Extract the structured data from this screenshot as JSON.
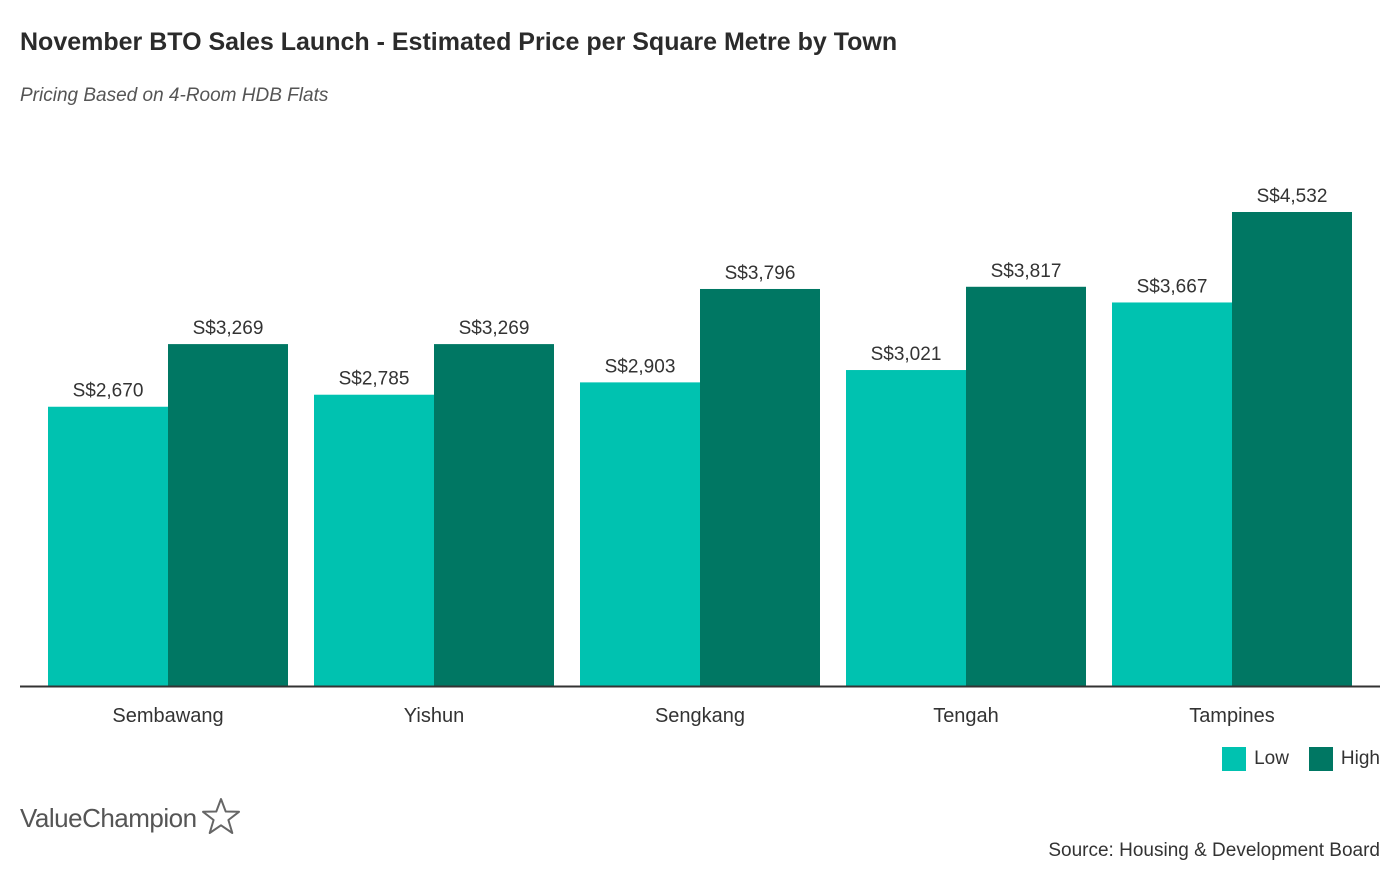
{
  "title": "November BTO Sales Launch - Estimated Price per Square Metre by Town",
  "subtitle": "Pricing Based on 4-Room HDB Flats",
  "colors": {
    "low": "#00c2b0",
    "high": "#007763",
    "axis": "#333333"
  },
  "chart_data": {
    "type": "bar",
    "categories": [
      "Sembawang",
      "Yishun",
      "Sengkang",
      "Tengah",
      "Tampines"
    ],
    "series": [
      {
        "name": "Low",
        "values": [
          2670,
          2785,
          2903,
          3021,
          3667
        ],
        "labels": [
          "S$2,670",
          "S$2,785",
          "S$2,903",
          "S$3,021",
          "S$3,667"
        ]
      },
      {
        "name": "High",
        "values": [
          3269,
          3269,
          3796,
          3817,
          4532
        ],
        "labels": [
          "S$3,269",
          "S$3,269",
          "S$3,796",
          "S$3,817",
          "S$4,532"
        ]
      }
    ],
    "ylim": [
      0,
      5000
    ],
    "grid": false,
    "legend_position": "bottom-right"
  },
  "legend": {
    "low_label": "Low",
    "high_label": "High"
  },
  "logo": {
    "text": "ValueChampion",
    "icon": "star-outline-icon"
  },
  "source": "Source: Housing & Development Board"
}
